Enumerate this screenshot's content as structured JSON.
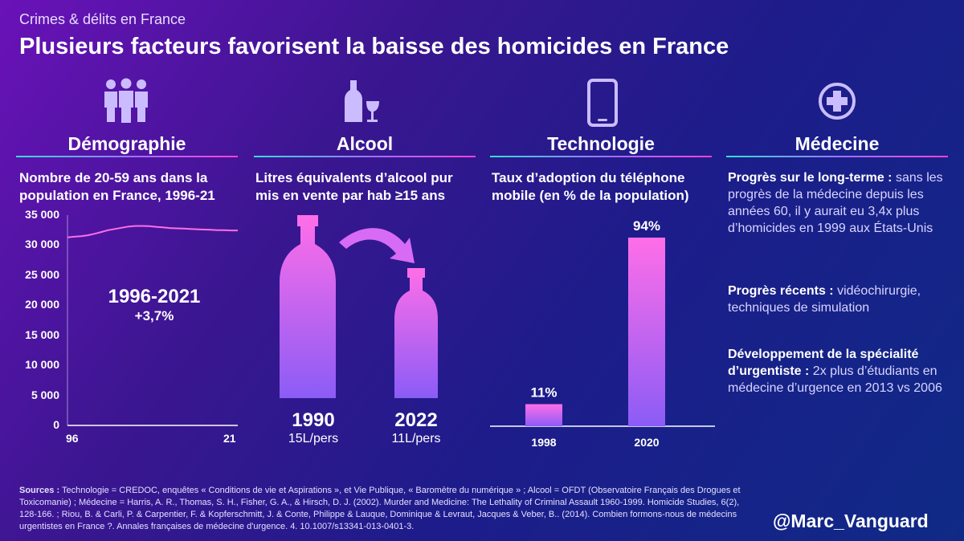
{
  "header": {
    "kicker": "Crimes & délits en France",
    "title": "Plusieurs facteurs favorisent la baisse des homicides en France"
  },
  "sections": {
    "demo": {
      "title": "Démographie",
      "icon": "people-icon",
      "subtitle": "Nombre de 20-59 ans dans la population en France, 1996-21",
      "annotation_period": "1996-2021",
      "annotation_change": "+3,7%"
    },
    "alcool": {
      "title": "Alcool",
      "icon": "wine-bottle-glass-icon",
      "subtitle": "Litres équivalents d’alcool pur mis en vente par hab ≥15 ans"
    },
    "tech": {
      "title": "Technologie",
      "icon": "mobile-phone-icon",
      "subtitle": "Taux d’adoption du téléphone mobile (en % de la population)"
    },
    "med": {
      "title": "Médecine",
      "icon": "medical-cross-icon",
      "p1_bold": "Progrès sur le long-terme :",
      "p1_text": "sans les progrès de la médecine depuis les années 60, il y aurait eu 3,4x plus d’homicides en 1999 aux États-Unis",
      "p2_bold": "Progrès récents :",
      "p2_text": "vidéochirurgie, techniques de simulation",
      "p3_bold": "Développement de la spécialité d’urgentiste :",
      "p3_text": "2x plus d’étudiants en médecine d’urgence en 2013 vs 2006"
    }
  },
  "chart_data": [
    {
      "type": "line",
      "x": [
        1996,
        1997,
        1998,
        1999,
        2000,
        2001,
        2002,
        2003,
        2004,
        2005,
        2006,
        2007,
        2008,
        2009,
        2010,
        2011,
        2012,
        2013,
        2014,
        2015,
        2016,
        2017,
        2018,
        2019,
        2020,
        2021
      ],
      "values": [
        31300,
        31400,
        31500,
        31650,
        31900,
        32200,
        32500,
        32700,
        32900,
        33100,
        33200,
        33200,
        33150,
        33050,
        32950,
        32850,
        32800,
        32750,
        32700,
        32650,
        32600,
        32550,
        32500,
        32500,
        32450,
        32450
      ],
      "x_tick_labels": [
        "96",
        "21"
      ],
      "y_ticks": [
        0,
        5000,
        10000,
        15000,
        20000,
        25000,
        30000,
        35000
      ],
      "y_tick_labels": [
        "0",
        "5 000",
        "10 000",
        "15 000",
        "20 000",
        "25 000",
        "30 000",
        "35 000"
      ],
      "ylim": [
        0,
        35000
      ],
      "color": "#ff6ee8"
    },
    {
      "type": "bar",
      "categories": [
        "1990",
        "2022"
      ],
      "values": [
        15,
        11
      ],
      "value_labels": [
        "15L/pers",
        "11L/pers"
      ]
    },
    {
      "type": "bar",
      "categories": [
        "1998",
        "2020"
      ],
      "values": [
        11,
        94
      ],
      "value_labels": [
        "11%",
        "94%"
      ],
      "ylim": [
        0,
        100
      ]
    }
  ],
  "footer": {
    "sources_label": "Sources :",
    "sources_text": "Technologie = CREDOC, enquêtes « Conditions de vie et Aspirations », et Vie Publique, « Baromètre du numérique » ; Alcool = OFDT (Observatoire Français des Drogues et Toxicomanie) ; Médecine = Harris, A. R., Thomas, S. H., Fisher, G. A., & Hirsch, D. J. (2002). Murder and Medicine: The Lethality of Criminal Assault 1960-1999. Homicide Studies, 6(2), 128-166. ; Riou, B. & Carli, P. & Carpentier, F. & Kopferschmitt, J. & Conte, Philippe & Lauque, Dominique & Levraut, Jacques & Veber, B.. (2014). Combien formons-nous de médecins urgentistes en France ?. Annales françaises de médecine d'urgence. 4. 10.1007/s13341-013-0401-3.",
    "handle": "@Marc_Vanguard"
  },
  "colors": {
    "accent_pink": "#ff6ee8",
    "accent_purple": "#8b5cf6",
    "icon": "#cbbcff"
  }
}
